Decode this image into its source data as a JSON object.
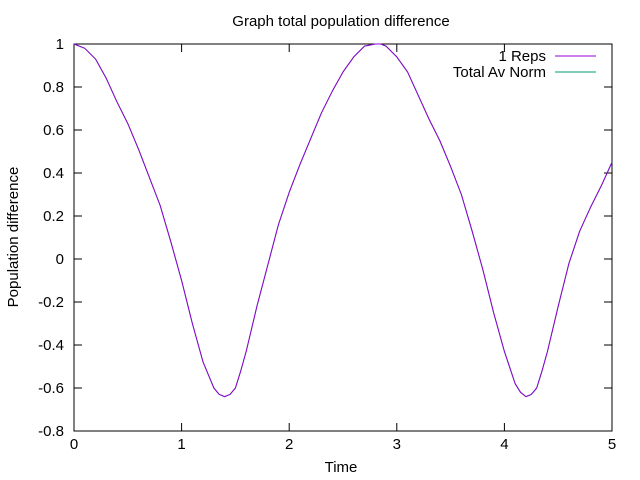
{
  "chart_data": {
    "type": "line",
    "title": "Graph total population difference",
    "xlabel": "Time",
    "ylabel": "Population difference",
    "xlim": [
      0,
      5
    ],
    "ylim": [
      -0.8,
      1
    ],
    "x_ticks": [
      0,
      1,
      2,
      3,
      4,
      5
    ],
    "y_ticks": [
      -0.8,
      -0.6,
      -0.4,
      -0.2,
      0,
      0.2,
      0.4,
      0.6,
      0.8,
      1
    ],
    "x_tick_labels": [
      "0",
      "1",
      "2",
      "3",
      "4",
      "5"
    ],
    "y_tick_labels": [
      "-0.8",
      "-0.6",
      "-0.4",
      "-0.2",
      "0",
      "0.2",
      "0.4",
      "0.6",
      "0.8",
      "1"
    ],
    "grid": false,
    "legend_position": "top-right",
    "series": [
      {
        "name": "1 Reps",
        "color": "#9400d3",
        "x": [
          0,
          0.1,
          0.2,
          0.3,
          0.4,
          0.5,
          0.6,
          0.7,
          0.8,
          0.9,
          1.0,
          1.1,
          1.2,
          1.3,
          1.35,
          1.4,
          1.45,
          1.5,
          1.55,
          1.6,
          1.7,
          1.8,
          1.9,
          2.0,
          2.1,
          2.2,
          2.3,
          2.4,
          2.5,
          2.6,
          2.7,
          2.8,
          2.85,
          2.9,
          3.0,
          3.1,
          3.2,
          3.3,
          3.4,
          3.5,
          3.6,
          3.7,
          3.8,
          3.9,
          4.0,
          4.1,
          4.15,
          4.2,
          4.25,
          4.3,
          4.35,
          4.4,
          4.5,
          4.6,
          4.7,
          4.8,
          4.9,
          5.0
        ],
        "y": [
          1.0,
          0.98,
          0.93,
          0.84,
          0.73,
          0.63,
          0.51,
          0.38,
          0.25,
          0.08,
          -0.1,
          -0.3,
          -0.48,
          -0.6,
          -0.63,
          -0.64,
          -0.63,
          -0.6,
          -0.52,
          -0.43,
          -0.22,
          -0.03,
          0.16,
          0.31,
          0.44,
          0.56,
          0.68,
          0.78,
          0.87,
          0.94,
          0.99,
          1.0,
          1.0,
          0.99,
          0.94,
          0.87,
          0.76,
          0.65,
          0.55,
          0.43,
          0.3,
          0.13,
          -0.05,
          -0.25,
          -0.43,
          -0.58,
          -0.62,
          -0.64,
          -0.63,
          -0.6,
          -0.52,
          -0.43,
          -0.22,
          -0.02,
          0.13,
          0.24,
          0.34,
          0.45
        ]
      },
      {
        "name": "Total Av Norm",
        "color": "#009e73",
        "x": [
          0,
          0.1,
          0.2,
          0.3,
          0.4,
          0.5,
          0.6,
          0.7,
          0.8,
          0.9,
          1.0,
          1.1,
          1.2,
          1.3,
          1.35,
          1.4,
          1.45,
          1.5,
          1.55,
          1.6,
          1.7,
          1.8,
          1.9,
          2.0,
          2.1,
          2.2,
          2.3,
          2.4,
          2.5,
          2.6,
          2.7,
          2.8,
          2.85,
          2.9,
          3.0,
          3.1,
          3.2,
          3.3,
          3.4,
          3.5,
          3.6,
          3.7,
          3.8,
          3.9,
          4.0,
          4.1,
          4.15,
          4.2,
          4.25,
          4.3,
          4.35,
          4.4,
          4.5,
          4.6,
          4.7,
          4.8,
          4.9,
          5.0
        ],
        "y": [
          1.0,
          0.98,
          0.93,
          0.84,
          0.73,
          0.63,
          0.51,
          0.38,
          0.25,
          0.08,
          -0.1,
          -0.3,
          -0.48,
          -0.6,
          -0.63,
          -0.64,
          -0.63,
          -0.6,
          -0.52,
          -0.43,
          -0.22,
          -0.03,
          0.16,
          0.31,
          0.44,
          0.56,
          0.68,
          0.78,
          0.87,
          0.94,
          0.99,
          1.0,
          1.0,
          0.99,
          0.94,
          0.87,
          0.76,
          0.65,
          0.55,
          0.43,
          0.3,
          0.13,
          -0.05,
          -0.25,
          -0.43,
          -0.58,
          -0.62,
          -0.64,
          -0.63,
          -0.6,
          -0.52,
          -0.43,
          -0.22,
          -0.02,
          0.13,
          0.24,
          0.34,
          0.45
        ]
      }
    ]
  }
}
